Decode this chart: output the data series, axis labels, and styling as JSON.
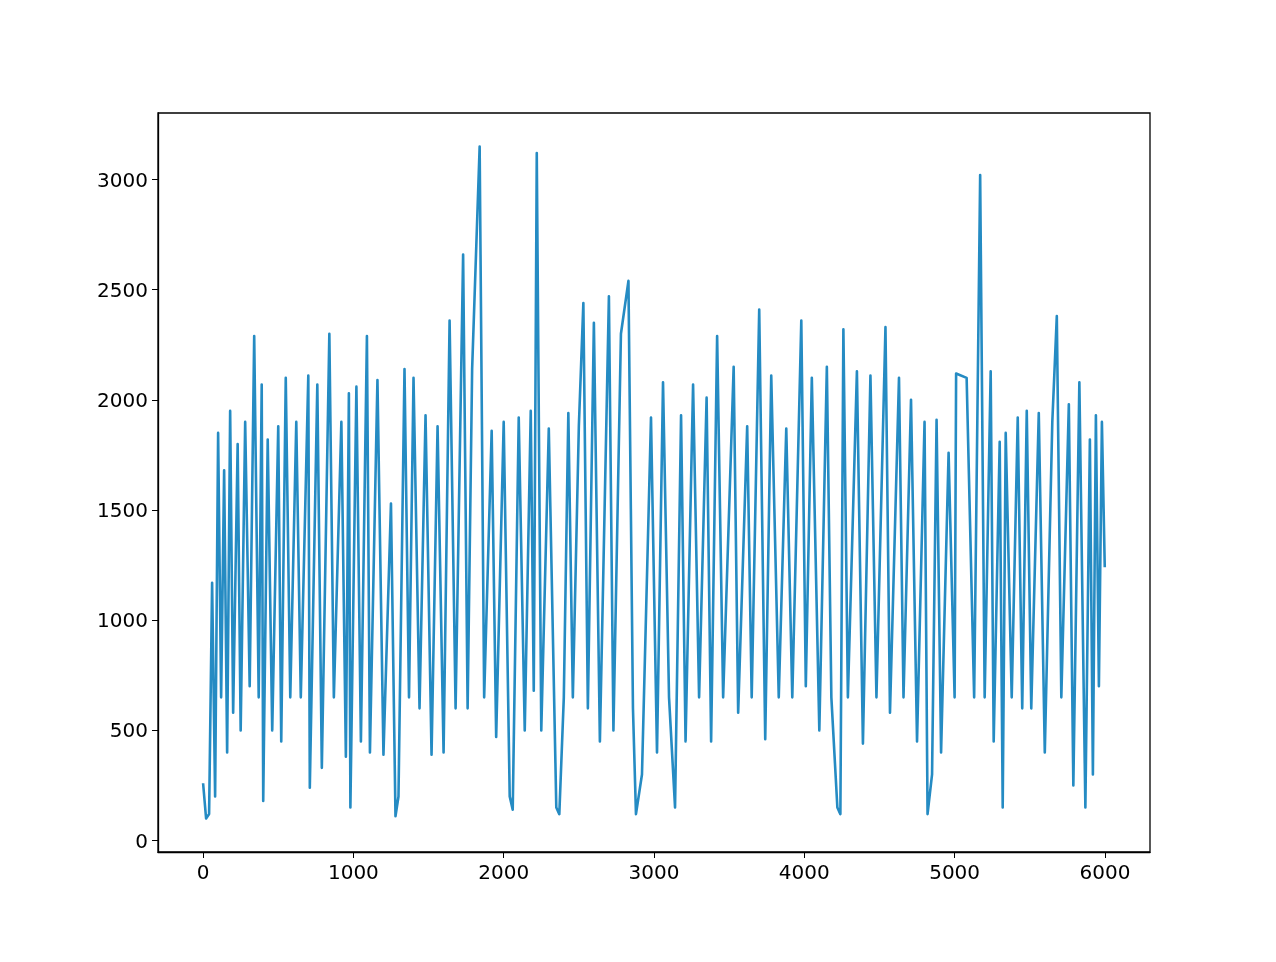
{
  "chart_data": {
    "type": "line",
    "xlim": [
      -300,
      6300
    ],
    "ylim": [
      -52,
      3302
    ],
    "xticks": [
      0,
      1000,
      2000,
      3000,
      4000,
      5000,
      6000
    ],
    "yticks": [
      0,
      500,
      1000,
      1500,
      2000,
      2500,
      3000
    ],
    "grid": false,
    "marker": "none",
    "line_style": "solid",
    "series": [
      {
        "color": "#258bc3",
        "x": [
          0,
          20,
          40,
          60,
          80,
          100,
          120,
          140,
          160,
          180,
          200,
          230,
          250,
          280,
          310,
          340,
          370,
          390,
          400,
          430,
          460,
          500,
          520,
          550,
          580,
          620,
          650,
          700,
          710,
          760,
          790,
          840,
          870,
          920,
          950,
          970,
          980,
          1020,
          1050,
          1090,
          1110,
          1160,
          1200,
          1250,
          1280,
          1300,
          1340,
          1370,
          1400,
          1440,
          1480,
          1520,
          1560,
          1600,
          1640,
          1680,
          1730,
          1760,
          1790,
          1840,
          1870,
          1920,
          1950,
          2000,
          2040,
          2060,
          2100,
          2140,
          2180,
          2200,
          2220,
          2250,
          2300,
          2350,
          2370,
          2400,
          2430,
          2460,
          2500,
          2530,
          2560,
          2600,
          2640,
          2700,
          2730,
          2780,
          2830,
          2860,
          2880,
          2920,
          2980,
          3020,
          3060,
          3100,
          3140,
          3180,
          3210,
          3260,
          3300,
          3350,
          3380,
          3420,
          3460,
          3530,
          3560,
          3620,
          3650,
          3700,
          3740,
          3780,
          3830,
          3880,
          3920,
          3980,
          4010,
          4050,
          4100,
          4150,
          4180,
          4220,
          4240,
          4260,
          4290,
          4350,
          4390,
          4440,
          4480,
          4540,
          4570,
          4630,
          4660,
          4710,
          4750,
          4800,
          4820,
          4850,
          4880,
          4910,
          4960,
          5000,
          5010,
          5080,
          5130,
          5170,
          5200,
          5240,
          5260,
          5300,
          5320,
          5340,
          5380,
          5420,
          5450,
          5480,
          5510,
          5560,
          5600,
          5650,
          5680,
          5710,
          5760,
          5790,
          5830,
          5870,
          5900,
          5920,
          5940,
          5960,
          5980,
          5999
        ],
        "values": [
          260,
          100,
          120,
          1170,
          200,
          1850,
          650,
          1680,
          400,
          1950,
          580,
          1800,
          500,
          1900,
          700,
          2290,
          650,
          2070,
          180,
          1820,
          500,
          1880,
          450,
          2100,
          650,
          1900,
          650,
          2110,
          240,
          2070,
          330,
          2300,
          650,
          1900,
          380,
          2030,
          150,
          2060,
          450,
          2290,
          400,
          2090,
          390,
          1530,
          110,
          200,
          2140,
          650,
          2100,
          600,
          1930,
          390,
          1880,
          400,
          2360,
          600,
          2660,
          600,
          2140,
          3150,
          650,
          1860,
          470,
          1900,
          200,
          140,
          1920,
          500,
          1950,
          680,
          3120,
          500,
          1870,
          150,
          120,
          650,
          1940,
          650,
          1880,
          2440,
          600,
          2350,
          450,
          2470,
          500,
          2300,
          2540,
          600,
          120,
          300,
          1920,
          400,
          2080,
          650,
          150,
          1930,
          450,
          2070,
          650,
          2010,
          450,
          2290,
          650,
          2150,
          580,
          1880,
          650,
          2410,
          460,
          2110,
          650,
          1870,
          650,
          2360,
          700,
          2100,
          500,
          2150,
          650,
          150,
          120,
          2320,
          650,
          2130,
          440,
          2110,
          650,
          2330,
          580,
          2100,
          650,
          2000,
          450,
          1900,
          120,
          300,
          1910,
          400,
          1760,
          650,
          2120,
          2100,
          650,
          3020,
          650,
          2130,
          450,
          1810,
          150,
          1850,
          650,
          1920,
          600,
          1950,
          600,
          1940,
          400,
          1900,
          2380,
          650,
          1980,
          250,
          2080,
          150,
          1820,
          300,
          1930,
          700,
          1900,
          1240
        ]
      }
    ]
  }
}
